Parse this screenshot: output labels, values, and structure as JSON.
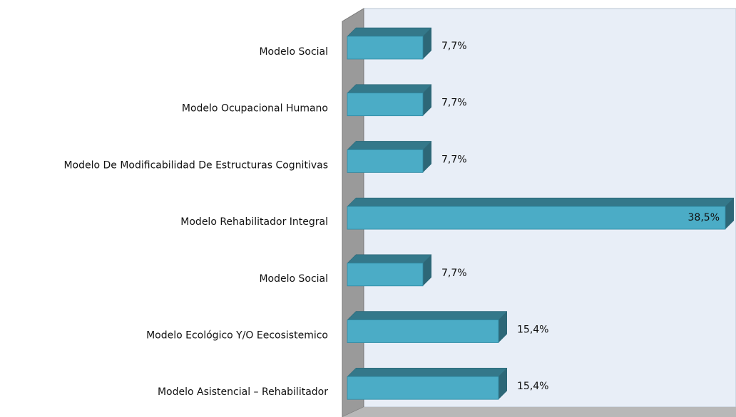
{
  "chart_data": {
    "type": "bar3d_horizontal",
    "categories": [
      "Modelo Social",
      "Modelo Ocupacional Humano",
      "Modelo De Modificabilidad De Estructuras Cognitivas",
      "Modelo Rehabilitador Integral",
      "Modelo Social",
      "Modelo Ecológico Y/O Eecosistemico",
      "Modelo Asistencial – Rehabilitador"
    ],
    "values": [
      7.7,
      7.7,
      7.7,
      38.5,
      7.7,
      15.4,
      15.4
    ],
    "value_labels": [
      "7,7%",
      "7,7%",
      "7,7%",
      "38,5%",
      "7,7%",
      "15,4%",
      "15,4%"
    ],
    "color": "#4bacc6"
  }
}
